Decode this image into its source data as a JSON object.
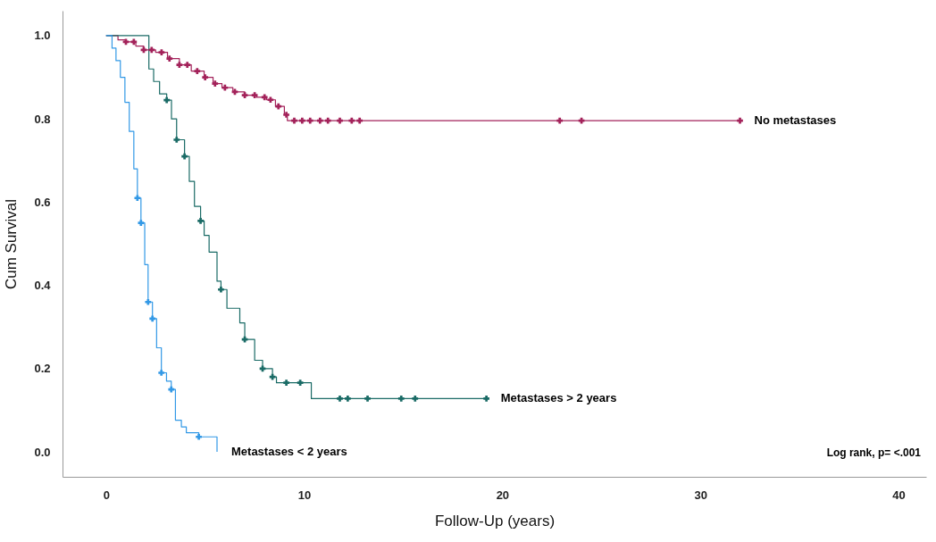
{
  "chart_data": {
    "type": "step",
    "xlabel": "Follow-Up (years)",
    "ylabel": "Cum Survival",
    "xlim": [
      -2.2,
      41.4
    ],
    "ylim": [
      -0.06,
      1.06
    ],
    "xticks": [
      0,
      10,
      20,
      30,
      40
    ],
    "yticks": [
      {
        "value": 0,
        "label": "0.0"
      },
      {
        "value": 0.2,
        "label": "0.2"
      },
      {
        "value": 0.4,
        "label": "0.4"
      },
      {
        "value": 0.6,
        "label": "0.6"
      },
      {
        "value": 0.8,
        "label": "0.8"
      },
      {
        "value": 1,
        "label": "1.0"
      }
    ],
    "grid": false,
    "legend": false,
    "line_style": "solid",
    "annotations": [
      "Log rank, p= <.001"
    ],
    "series": [
      {
        "name": "No metastases",
        "color": "#a3225a",
        "x": [
          0,
          0.6,
          1.0,
          1.5,
          1.9,
          2.5,
          3.1,
          3.7,
          4.3,
          4.95,
          5.4,
          5.85,
          6.4,
          7.0,
          7.6,
          8.1,
          8.55,
          9.0,
          9.15,
          32
        ],
        "values": [
          1.0,
          0.99,
          0.985,
          0.975,
          0.966,
          0.96,
          0.945,
          0.93,
          0.915,
          0.9,
          0.885,
          0.875,
          0.865,
          0.857,
          0.852,
          0.846,
          0.83,
          0.81,
          0.796,
          0.796
        ]
      },
      {
        "name": "Metastases > 2 years",
        "color": "#1a6b66",
        "x": [
          0,
          2.16,
          2.4,
          2.7,
          3.06,
          3.3,
          3.56,
          3.96,
          4.2,
          4.46,
          4.77,
          4.95,
          5.2,
          5.6,
          5.8,
          6.1,
          6.75,
          7.0,
          7.5,
          7.9,
          8.4,
          8.6,
          10.36,
          19.2
        ],
        "values": [
          1.0,
          0.92,
          0.89,
          0.86,
          0.845,
          0.8,
          0.75,
          0.71,
          0.65,
          0.59,
          0.555,
          0.52,
          0.48,
          0.41,
          0.39,
          0.345,
          0.31,
          0.27,
          0.22,
          0.2,
          0.18,
          0.166,
          0.128,
          0.128
        ]
      },
      {
        "name": "Metastases < 2 years",
        "color": "#3399e6",
        "x": [
          0,
          0.3,
          0.5,
          0.72,
          0.95,
          1.17,
          1.4,
          1.58,
          1.76,
          1.95,
          2.12,
          2.34,
          2.55,
          2.79,
          3.05,
          3.29,
          3.5,
          3.8,
          4.05,
          4.68,
          5.6
        ],
        "values": [
          1.0,
          0.97,
          0.94,
          0.9,
          0.84,
          0.77,
          0.68,
          0.61,
          0.55,
          0.45,
          0.36,
          0.32,
          0.25,
          0.19,
          0.17,
          0.15,
          0.076,
          0.06,
          0.046,
          0.036,
          0.0
        ]
      },
      {
        "type": "scatter",
        "marker": "cross",
        "color": "#a3225a",
        "x": [
          1.0,
          1.4,
          1.9,
          2.3,
          2.8,
          3.2,
          3.7,
          4.1,
          4.6,
          5.0,
          5.5,
          6.0,
          6.5,
          7.0,
          7.5,
          8.0,
          8.3,
          8.7,
          9.1,
          9.5,
          9.9,
          10.3,
          10.8,
          11.2,
          11.8,
          12.4,
          12.8,
          22.9,
          24.0,
          32.0
        ],
        "values": [
          0.985,
          0.985,
          0.966,
          0.966,
          0.96,
          0.945,
          0.93,
          0.93,
          0.915,
          0.9,
          0.885,
          0.875,
          0.865,
          0.857,
          0.857,
          0.852,
          0.846,
          0.83,
          0.81,
          0.796,
          0.796,
          0.796,
          0.796,
          0.796,
          0.796,
          0.796,
          0.796,
          0.796,
          0.796,
          0.796
        ]
      },
      {
        "type": "scatter",
        "marker": "cross",
        "color": "#1a6b66",
        "x": [
          3.06,
          3.56,
          3.96,
          4.77,
          5.8,
          7.0,
          7.9,
          8.4,
          9.1,
          9.8,
          11.8,
          12.2,
          13.2,
          14.9,
          15.6,
          19.2
        ],
        "values": [
          0.845,
          0.75,
          0.71,
          0.555,
          0.39,
          0.27,
          0.2,
          0.18,
          0.166,
          0.166,
          0.128,
          0.128,
          0.128,
          0.128,
          0.128,
          0.128
        ]
      },
      {
        "type": "scatter",
        "marker": "cross",
        "color": "#3399e6",
        "x": [
          1.58,
          1.76,
          2.12,
          2.34,
          2.79,
          3.29,
          4.68
        ],
        "values": [
          0.61,
          0.55,
          0.36,
          0.32,
          0.19,
          0.15,
          0.036
        ]
      }
    ]
  }
}
